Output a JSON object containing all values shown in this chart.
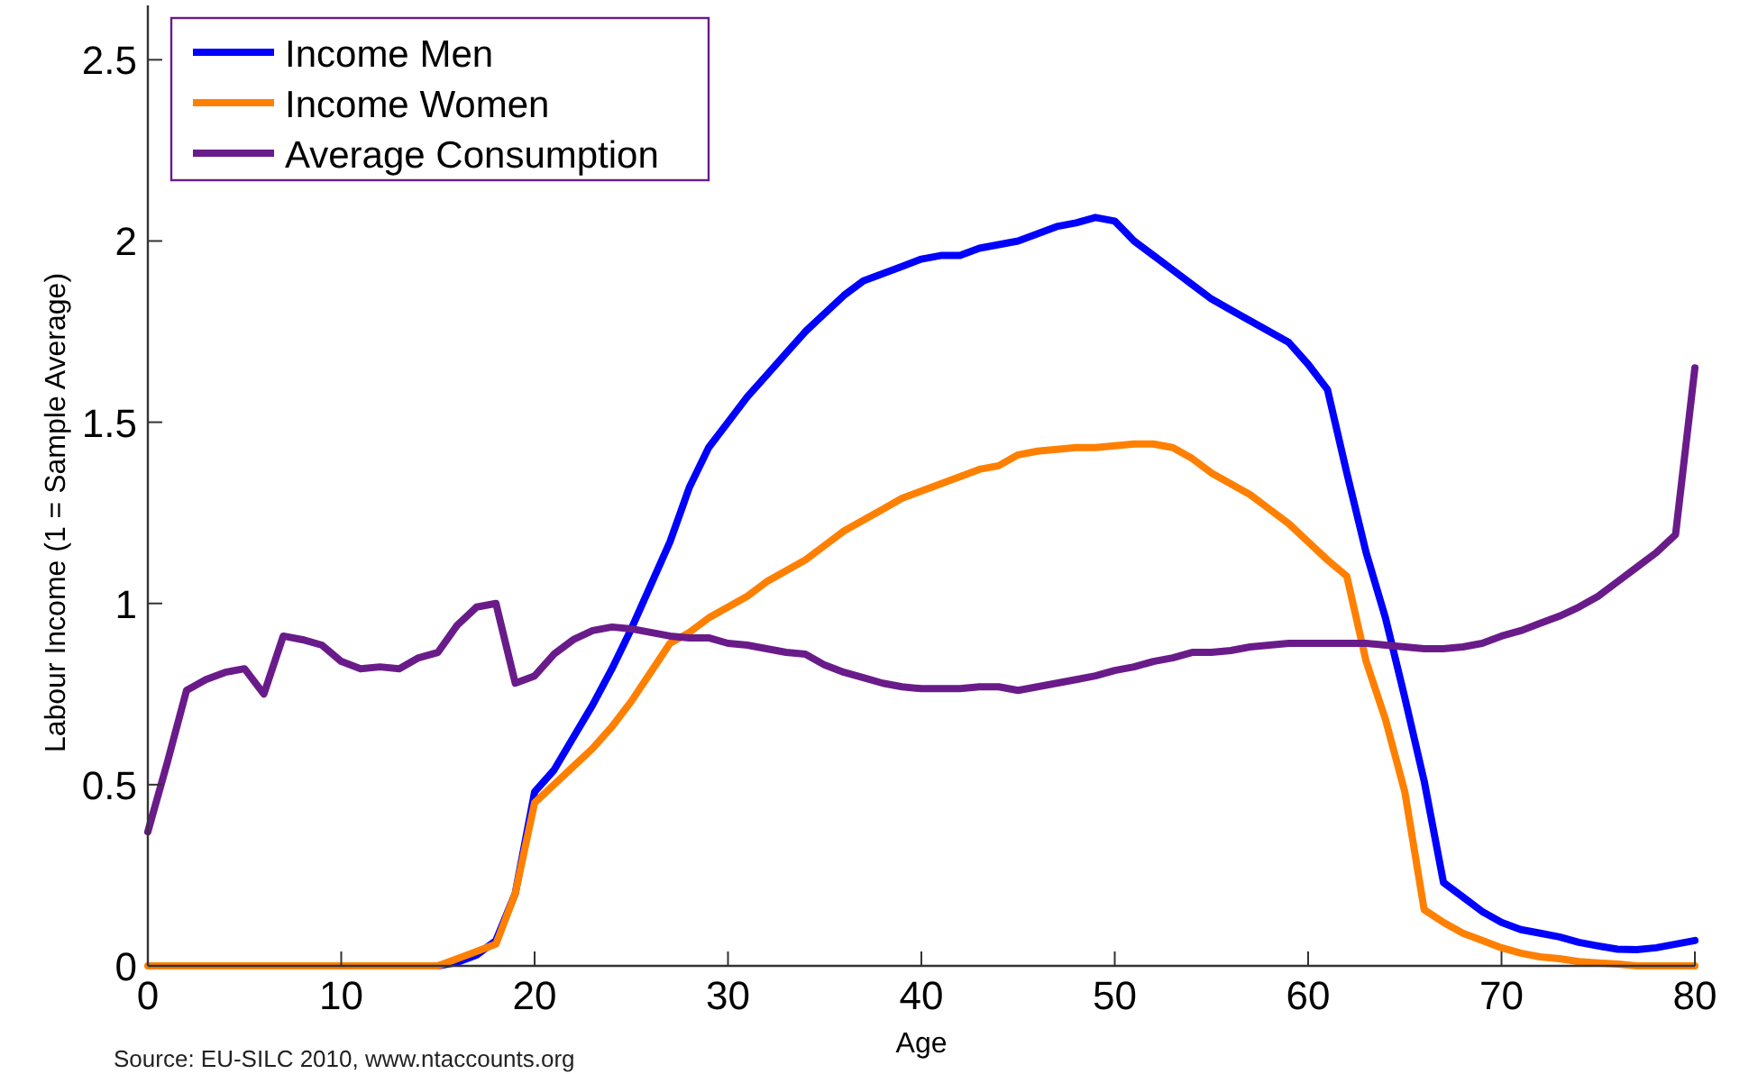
{
  "chart_data": {
    "type": "line",
    "xlabel": "Age",
    "ylabel": "Labour Income (1 = Sample Average)",
    "annotations": [
      "Source: EU-SILC 2010, www.ntaccounts.org"
    ],
    "x": [
      0,
      1,
      2,
      3,
      4,
      5,
      6,
      7,
      8,
      9,
      10,
      11,
      12,
      13,
      14,
      15,
      16,
      17,
      18,
      19,
      20,
      21,
      22,
      23,
      24,
      25,
      26,
      27,
      28,
      29,
      30,
      31,
      32,
      33,
      34,
      35,
      36,
      37,
      38,
      39,
      40,
      41,
      42,
      43,
      44,
      45,
      46,
      47,
      48,
      49,
      50,
      51,
      52,
      53,
      54,
      55,
      56,
      57,
      58,
      59,
      60,
      61,
      62,
      63,
      64,
      65,
      66,
      67,
      68,
      69,
      70,
      71,
      72,
      73,
      74,
      75,
      76,
      77,
      78,
      79,
      80
    ],
    "xlim": [
      0,
      80
    ],
    "xticks": [
      0,
      10,
      20,
      30,
      40,
      50,
      60,
      70,
      80
    ],
    "ylim": [
      0,
      2.65
    ],
    "yticks": [
      0,
      0.5,
      1,
      1.5,
      2,
      2.5
    ],
    "grid": false,
    "legend": "top left",
    "line_style": "solid",
    "marker": "none",
    "series": [
      {
        "name": "Income Men",
        "color": "#0000ff",
        "values": [
          null,
          null,
          null,
          null,
          null,
          null,
          null,
          null,
          null,
          null,
          null,
          null,
          null,
          null,
          null,
          0,
          0.01,
          0.03,
          0.07,
          0.2,
          0.48,
          0.54,
          0.63,
          0.72,
          0.82,
          0.93,
          1.05,
          1.17,
          1.32,
          1.43,
          1.5,
          1.57,
          1.63,
          1.69,
          1.75,
          1.8,
          1.85,
          1.89,
          1.91,
          1.93,
          1.95,
          1.96,
          1.96,
          1.98,
          1.99,
          2.0,
          2.02,
          2.04,
          2.05,
          2.065,
          2.055,
          2.0,
          1.96,
          1.92,
          1.88,
          1.84,
          1.81,
          1.78,
          1.75,
          1.72,
          1.66,
          1.59,
          1.36,
          1.14,
          0.96,
          0.74,
          0.51,
          0.23,
          0.19,
          0.15,
          0.12,
          0.1,
          0.09,
          0.08,
          0.065,
          0.055,
          0.046,
          0.045,
          0.05,
          0.06,
          0.07
        ]
      },
      {
        "name": "Income Women",
        "color": "#ff8000",
        "values": [
          0,
          0,
          0,
          0,
          0,
          0,
          0,
          0,
          0,
          0,
          0,
          0,
          0,
          0,
          0,
          0,
          0.02,
          0.04,
          0.06,
          0.2,
          0.45,
          0.5,
          0.55,
          0.6,
          0.66,
          0.73,
          0.81,
          0.89,
          0.92,
          0.96,
          0.99,
          1.02,
          1.06,
          1.09,
          1.12,
          1.16,
          1.2,
          1.23,
          1.26,
          1.29,
          1.31,
          1.33,
          1.35,
          1.37,
          1.38,
          1.41,
          1.42,
          1.425,
          1.43,
          1.43,
          1.435,
          1.44,
          1.44,
          1.43,
          1.4,
          1.36,
          1.33,
          1.3,
          1.26,
          1.22,
          1.17,
          1.12,
          1.075,
          0.84,
          0.68,
          0.48,
          0.155,
          0.12,
          0.09,
          0.07,
          0.05,
          0.035,
          0.025,
          0.02,
          0.012,
          0.008,
          0.005,
          0,
          0,
          0,
          0
        ]
      },
      {
        "name": "Average Consumption",
        "color": "#6a1b8a",
        "values": [
          0.37,
          0.56,
          0.76,
          0.79,
          0.81,
          0.82,
          0.75,
          0.91,
          0.9,
          0.885,
          0.84,
          0.82,
          0.825,
          0.82,
          0.85,
          0.865,
          0.94,
          0.99,
          1.0,
          0.78,
          0.8,
          0.86,
          0.9,
          0.925,
          0.935,
          0.93,
          0.92,
          0.91,
          0.905,
          0.905,
          0.89,
          0.885,
          0.875,
          0.865,
          0.86,
          0.83,
          0.81,
          0.795,
          0.78,
          0.77,
          0.765,
          0.765,
          0.765,
          0.77,
          0.77,
          0.76,
          0.77,
          0.78,
          0.79,
          0.8,
          0.815,
          0.825,
          0.84,
          0.85,
          0.865,
          0.865,
          0.87,
          0.88,
          0.885,
          0.89,
          0.89,
          0.89,
          0.89,
          0.89,
          0.885,
          0.88,
          0.875,
          0.875,
          0.88,
          0.89,
          0.91,
          0.925,
          0.945,
          0.965,
          0.99,
          1.02,
          1.06,
          1.1,
          1.14,
          1.19,
          1.65
        ]
      }
    ]
  }
}
